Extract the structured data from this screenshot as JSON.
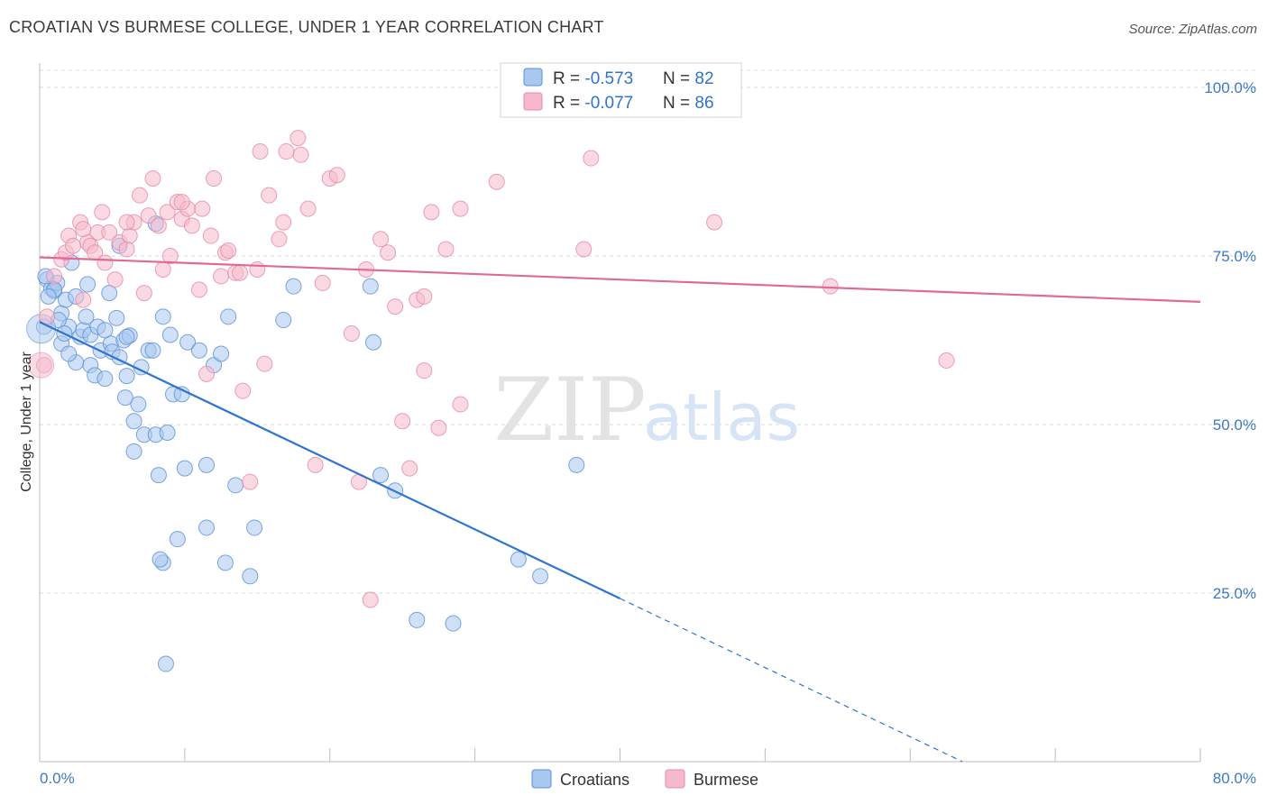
{
  "title": "CROATIAN VS BURMESE COLLEGE, UNDER 1 YEAR CORRELATION CHART",
  "source": "Source: ZipAtlas.com",
  "watermark": {
    "zip": "ZIP",
    "atlas": "atlas"
  },
  "colors": {
    "croatian_fill": "#a9c8f0",
    "croatian_stroke": "#5b8fd6",
    "croatian_line": "#2f74d0",
    "burmese_fill": "#f6b9cb",
    "burmese_stroke": "#e58aa8",
    "burmese_line": "#e06a93",
    "axis_text": "#3d78c8",
    "grid": "#d9d9d9"
  },
  "legend": {
    "rows": [
      {
        "r_label": "R = ",
        "r_value": "-0.573",
        "n_label": "N = ",
        "n_value": "82"
      },
      {
        "r_label": "R = ",
        "r_value": "-0.077",
        "n_label": "N = ",
        "n_value": "86"
      }
    ]
  },
  "bottom_legend": [
    "Croatians",
    "Burmese"
  ],
  "chart_data": {
    "type": "scatter",
    "ylabel": "College, Under 1 year",
    "xlim": [
      0,
      80
    ],
    "ylim": [
      0,
      105
    ],
    "x_tick_labels": [
      "0.0%",
      "80.0%"
    ],
    "y_ticks": [
      25,
      50,
      75,
      100
    ],
    "y_tick_labels": [
      "25.0%",
      "50.0%",
      "75.0%",
      "100.0%"
    ],
    "grid": true,
    "series": [
      {
        "name": "Croatians",
        "r": -0.573,
        "n": 82,
        "trend": {
          "x0": 0,
          "y0": 65.2,
          "x1": 40,
          "y1": 24.2,
          "dash_x1": 63.6,
          "dash_y1": 0
        },
        "points": [
          [
            0.5,
            71.5
          ],
          [
            0.8,
            70.2
          ],
          [
            1.0,
            69.8
          ],
          [
            1.2,
            71.0
          ],
          [
            1.5,
            66.5
          ],
          [
            1.5,
            62.0
          ],
          [
            1.8,
            68.5
          ],
          [
            2.0,
            64.5
          ],
          [
            2.2,
            74.0
          ],
          [
            2.5,
            69.0
          ],
          [
            2.5,
            59.2
          ],
          [
            2.8,
            63.0
          ],
          [
            3.0,
            64.0
          ],
          [
            3.3,
            70.8
          ],
          [
            3.5,
            63.3
          ],
          [
            3.5,
            58.8
          ],
          [
            3.8,
            57.3
          ],
          [
            4.0,
            64.5
          ],
          [
            4.2,
            61.0
          ],
          [
            4.5,
            56.8
          ],
          [
            4.8,
            69.5
          ],
          [
            4.9,
            62.0
          ],
          [
            5.0,
            60.8
          ],
          [
            5.3,
            65.8
          ],
          [
            5.5,
            76.5
          ],
          [
            5.8,
            62.5
          ],
          [
            5.9,
            54.0
          ],
          [
            6.0,
            57.2
          ],
          [
            6.2,
            63.2
          ],
          [
            6.5,
            50.5
          ],
          [
            6.5,
            46.0
          ],
          [
            6.8,
            53.0
          ],
          [
            7.0,
            58.5
          ],
          [
            7.2,
            48.5
          ],
          [
            7.5,
            61.0
          ],
          [
            7.8,
            61.0
          ],
          [
            8.0,
            48.5
          ],
          [
            8.2,
            42.5
          ],
          [
            8.0,
            79.8
          ],
          [
            8.5,
            29.5
          ],
          [
            8.5,
            66.0
          ],
          [
            8.8,
            48.8
          ],
          [
            9.0,
            63.3
          ],
          [
            9.2,
            54.5
          ],
          [
            9.5,
            33.0
          ],
          [
            9.8,
            54.5
          ],
          [
            10.0,
            43.5
          ],
          [
            10.2,
            62.2
          ],
          [
            11.0,
            61.0
          ],
          [
            11.5,
            34.7
          ],
          [
            11.5,
            44.0
          ],
          [
            12.0,
            58.8
          ],
          [
            12.5,
            60.5
          ],
          [
            12.8,
            29.5
          ],
          [
            13.0,
            66.0
          ],
          [
            13.5,
            41.0
          ],
          [
            14.8,
            34.7
          ],
          [
            14.5,
            27.5
          ],
          [
            16.8,
            65.5
          ],
          [
            17.5,
            70.5
          ],
          [
            22.8,
            70.5
          ],
          [
            23.0,
            62.2
          ],
          [
            23.5,
            42.5
          ],
          [
            24.5,
            40.2
          ],
          [
            26.0,
            21.0
          ],
          [
            28.5,
            20.5
          ],
          [
            33.0,
            30.0
          ],
          [
            34.5,
            27.5
          ],
          [
            37.0,
            44.0
          ],
          [
            8.3,
            30.0
          ],
          [
            8.7,
            14.5
          ],
          [
            1.0,
            70.0
          ],
          [
            1.3,
            65.5
          ],
          [
            2.0,
            60.5
          ],
          [
            4.5,
            64.0
          ],
          [
            6.0,
            63.0
          ],
          [
            3.2,
            66.0
          ],
          [
            5.5,
            60.0
          ],
          [
            0.4,
            72.0
          ],
          [
            0.6,
            69.0
          ],
          [
            0.3,
            64.5
          ],
          [
            1.7,
            63.5
          ]
        ]
      },
      {
        "name": "Burmese",
        "r": -0.077,
        "n": 86,
        "trend": {
          "x0": 0,
          "y0": 74.8,
          "x1": 80,
          "y1": 68.2
        },
        "points": [
          [
            0.3,
            58.8
          ],
          [
            0.5,
            66.0
          ],
          [
            1.0,
            72.0
          ],
          [
            1.5,
            74.5
          ],
          [
            1.8,
            75.5
          ],
          [
            2.0,
            78.0
          ],
          [
            2.3,
            76.5
          ],
          [
            2.8,
            80.0
          ],
          [
            3.0,
            68.5
          ],
          [
            3.3,
            77.0
          ],
          [
            3.5,
            76.5
          ],
          [
            3.8,
            75.5
          ],
          [
            4.0,
            78.5
          ],
          [
            4.3,
            81.5
          ],
          [
            4.5,
            74.0
          ],
          [
            4.8,
            78.5
          ],
          [
            5.2,
            71.5
          ],
          [
            5.5,
            77.0
          ],
          [
            6.0,
            76.0
          ],
          [
            6.2,
            78.0
          ],
          [
            6.5,
            80.0
          ],
          [
            6.9,
            84.0
          ],
          [
            7.2,
            69.5
          ],
          [
            7.5,
            81.0
          ],
          [
            7.8,
            86.5
          ],
          [
            8.2,
            79.5
          ],
          [
            8.5,
            73.0
          ],
          [
            8.8,
            81.5
          ],
          [
            9.0,
            75.0
          ],
          [
            9.5,
            83.0
          ],
          [
            9.8,
            80.5
          ],
          [
            10.2,
            82.0
          ],
          [
            10.5,
            79.5
          ],
          [
            11.0,
            70.0
          ],
          [
            11.2,
            82.0
          ],
          [
            11.5,
            57.5
          ],
          [
            11.8,
            78.0
          ],
          [
            12.0,
            86.5
          ],
          [
            12.5,
            72.0
          ],
          [
            12.8,
            75.5
          ],
          [
            13.5,
            72.5
          ],
          [
            13.8,
            72.5
          ],
          [
            14.0,
            55.0
          ],
          [
            14.5,
            41.5
          ],
          [
            15.0,
            73.0
          ],
          [
            15.5,
            59.0
          ],
          [
            15.8,
            84.0
          ],
          [
            16.5,
            77.5
          ],
          [
            16.8,
            80.0
          ],
          [
            17.0,
            90.5
          ],
          [
            17.8,
            92.5
          ],
          [
            18.5,
            82.0
          ],
          [
            19.5,
            71.0
          ],
          [
            19.0,
            44.0
          ],
          [
            20.0,
            86.5
          ],
          [
            20.5,
            87.0
          ],
          [
            21.5,
            63.5
          ],
          [
            22.0,
            41.5
          ],
          [
            22.5,
            73.0
          ],
          [
            22.8,
            24.0
          ],
          [
            23.5,
            77.5
          ],
          [
            24.0,
            75.5
          ],
          [
            24.5,
            67.5
          ],
          [
            25.0,
            50.5
          ],
          [
            25.5,
            43.5
          ],
          [
            26.0,
            68.5
          ],
          [
            26.5,
            58.0
          ],
          [
            26.5,
            69.0
          ],
          [
            27.0,
            81.5
          ],
          [
            27.5,
            49.5
          ],
          [
            28.0,
            76.0
          ],
          [
            29.0,
            53.0
          ],
          [
            29.0,
            82.0
          ],
          [
            31.5,
            86.0
          ],
          [
            32.5,
            100.0
          ],
          [
            37.5,
            76.0
          ],
          [
            38.0,
            89.5
          ],
          [
            46.5,
            80.0
          ],
          [
            54.5,
            70.5
          ],
          [
            62.5,
            59.5
          ],
          [
            9.8,
            83.0
          ],
          [
            6.0,
            80.0
          ],
          [
            3.0,
            79.0
          ],
          [
            18.0,
            90.0
          ],
          [
            15.2,
            90.5
          ],
          [
            13.0,
            75.8
          ]
        ]
      }
    ]
  }
}
